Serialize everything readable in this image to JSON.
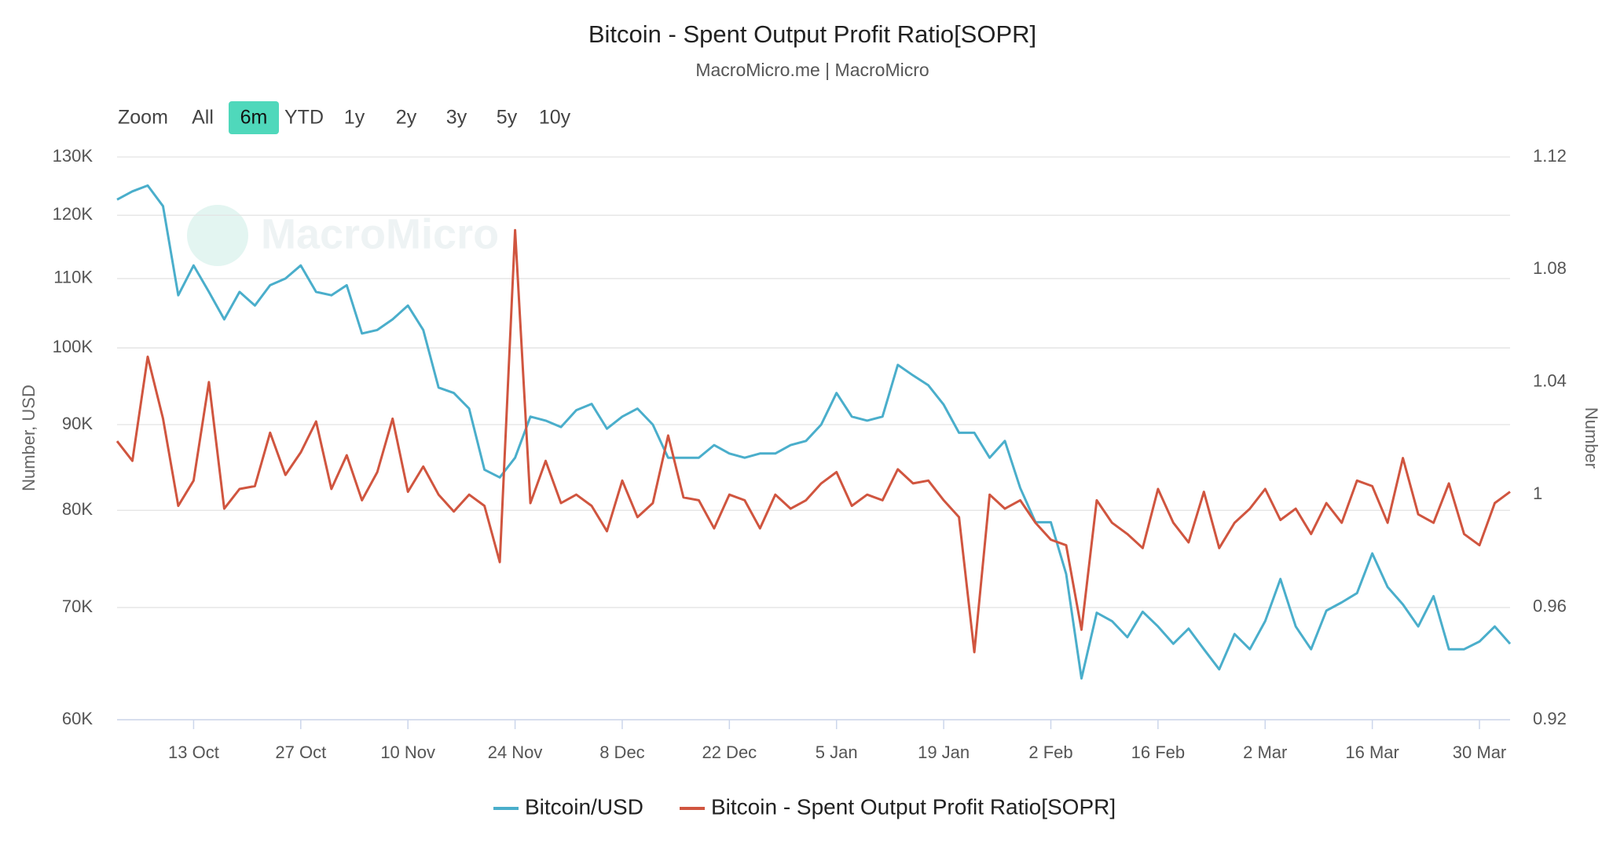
{
  "range_selector": {
    "label": "Zoom",
    "buttons": [
      "All",
      "6m",
      "YTD",
      "1y",
      "2y",
      "3y",
      "5y",
      "10y"
    ],
    "selected": 1
  },
  "watermark": "MacroMicro",
  "chart_data": {
    "type": "line",
    "title": "Bitcoin - Spent Output Profit Ratio[SOPR]",
    "subtitle": "MacroMicro.me | MacroMicro",
    "y_label": "Number, USD",
    "y2_label": "Number",
    "categories": [
      null,
      null,
      null,
      null,
      null,
      "13 Oct",
      null,
      null,
      null,
      null,
      null,
      null,
      "27 Oct",
      null,
      null,
      null,
      null,
      null,
      null,
      "10 Nov",
      null,
      null,
      null,
      null,
      null,
      null,
      "24 Nov",
      null,
      null,
      null,
      null,
      null,
      null,
      "8 Dec",
      null,
      null,
      null,
      null,
      null,
      null,
      "22 Dec",
      null,
      null,
      null,
      null,
      null,
      null,
      "5 Jan",
      null,
      null,
      null,
      null,
      null,
      null,
      "19 Jan",
      null,
      null,
      null,
      null,
      null,
      null,
      "2 Feb",
      null,
      null,
      null,
      null,
      null,
      null,
      "16 Feb",
      null,
      null,
      null,
      null,
      null,
      null,
      "2 Mar",
      null,
      null,
      null,
      null,
      null,
      null,
      "16 Mar",
      null,
      null,
      null,
      null,
      null,
      null,
      "30 Mar",
      null,
      null
    ],
    "series": [
      {
        "name": "Bitcoin/USD",
        "color": "#4aaecb",
        "axis": "y",
        "values": [
          122600,
          124000,
          125000,
          121500,
          107500,
          112000,
          108000,
          104000,
          108000,
          106000,
          109000,
          110000,
          112000,
          108000,
          107500,
          109000,
          102000,
          102500,
          104000,
          106000,
          102500,
          94700,
          94000,
          92000,
          84600,
          83700,
          86000,
          91000,
          90500,
          89700,
          91800,
          92600,
          89500,
          91000,
          92000,
          90000,
          86000,
          86000,
          86000,
          87500,
          86500,
          86000,
          86500,
          86500,
          87500,
          88000,
          90000,
          94000,
          91000,
          90500,
          91000,
          97700,
          96300,
          95000,
          92500,
          89000,
          89000,
          86000,
          88000,
          82500,
          78700,
          78700,
          73300,
          63500,
          69500,
          68700,
          67200,
          69600,
          68200,
          66600,
          68000,
          66100,
          64300,
          67500,
          66100,
          68700,
          72800,
          68200,
          66100,
          69700,
          70500,
          71400,
          75400,
          72000,
          70300,
          68200,
          71100,
          66100,
          66100,
          66800,
          68200,
          66600
        ]
      },
      {
        "name": "Bitcoin - Spent Output Profit Ratio[SOPR]",
        "color": "#d0553f",
        "axis": "y2",
        "values": [
          1.019,
          1.012,
          1.049,
          1.027,
          0.996,
          1.005,
          1.04,
          0.995,
          1.002,
          1.003,
          1.022,
          1.007,
          1.015,
          1.026,
          1.002,
          1.014,
          0.998,
          1.008,
          1.027,
          1.001,
          1.01,
          1.0,
          0.994,
          1.0,
          0.996,
          0.976,
          1.094,
          0.997,
          1.012,
          0.997,
          1.0,
          0.996,
          0.987,
          1.005,
          0.992,
          0.997,
          1.021,
          0.999,
          0.998,
          0.988,
          1.0,
          0.998,
          0.988,
          1.0,
          0.995,
          0.998,
          1.004,
          1.008,
          0.996,
          1.0,
          0.998,
          1.009,
          1.004,
          1.005,
          0.998,
          0.992,
          0.944,
          1.0,
          0.995,
          0.998,
          0.99,
          0.984,
          0.982,
          0.952,
          0.998,
          0.99,
          0.986,
          0.981,
          1.002,
          0.99,
          0.983,
          1.001,
          0.981,
          0.99,
          0.995,
          1.002,
          0.991,
          0.995,
          0.986,
          0.997,
          0.99,
          1.005,
          1.003,
          0.99,
          1.013,
          0.993,
          0.99,
          1.004,
          0.986,
          0.982,
          0.997,
          1.001
        ]
      }
    ],
    "ylog": true,
    "ylim": [
      60000,
      130000
    ],
    "yticks": [
      {
        "value": 60000,
        "label": "60K"
      },
      {
        "value": 70000,
        "label": "70K"
      },
      {
        "value": 80000,
        "label": "80K"
      },
      {
        "value": 90000,
        "label": "90K"
      },
      {
        "value": 100000,
        "label": "100K"
      },
      {
        "value": 110000,
        "label": "110K"
      },
      {
        "value": 120000,
        "label": "120K"
      },
      {
        "value": 130000,
        "label": "130K"
      }
    ],
    "y2lim": [
      0.92,
      1.12
    ],
    "y2ticks": [
      0.92,
      0.96,
      1,
      1.04,
      1.08,
      1.12
    ],
    "grid": true,
    "legend": "bottom"
  }
}
